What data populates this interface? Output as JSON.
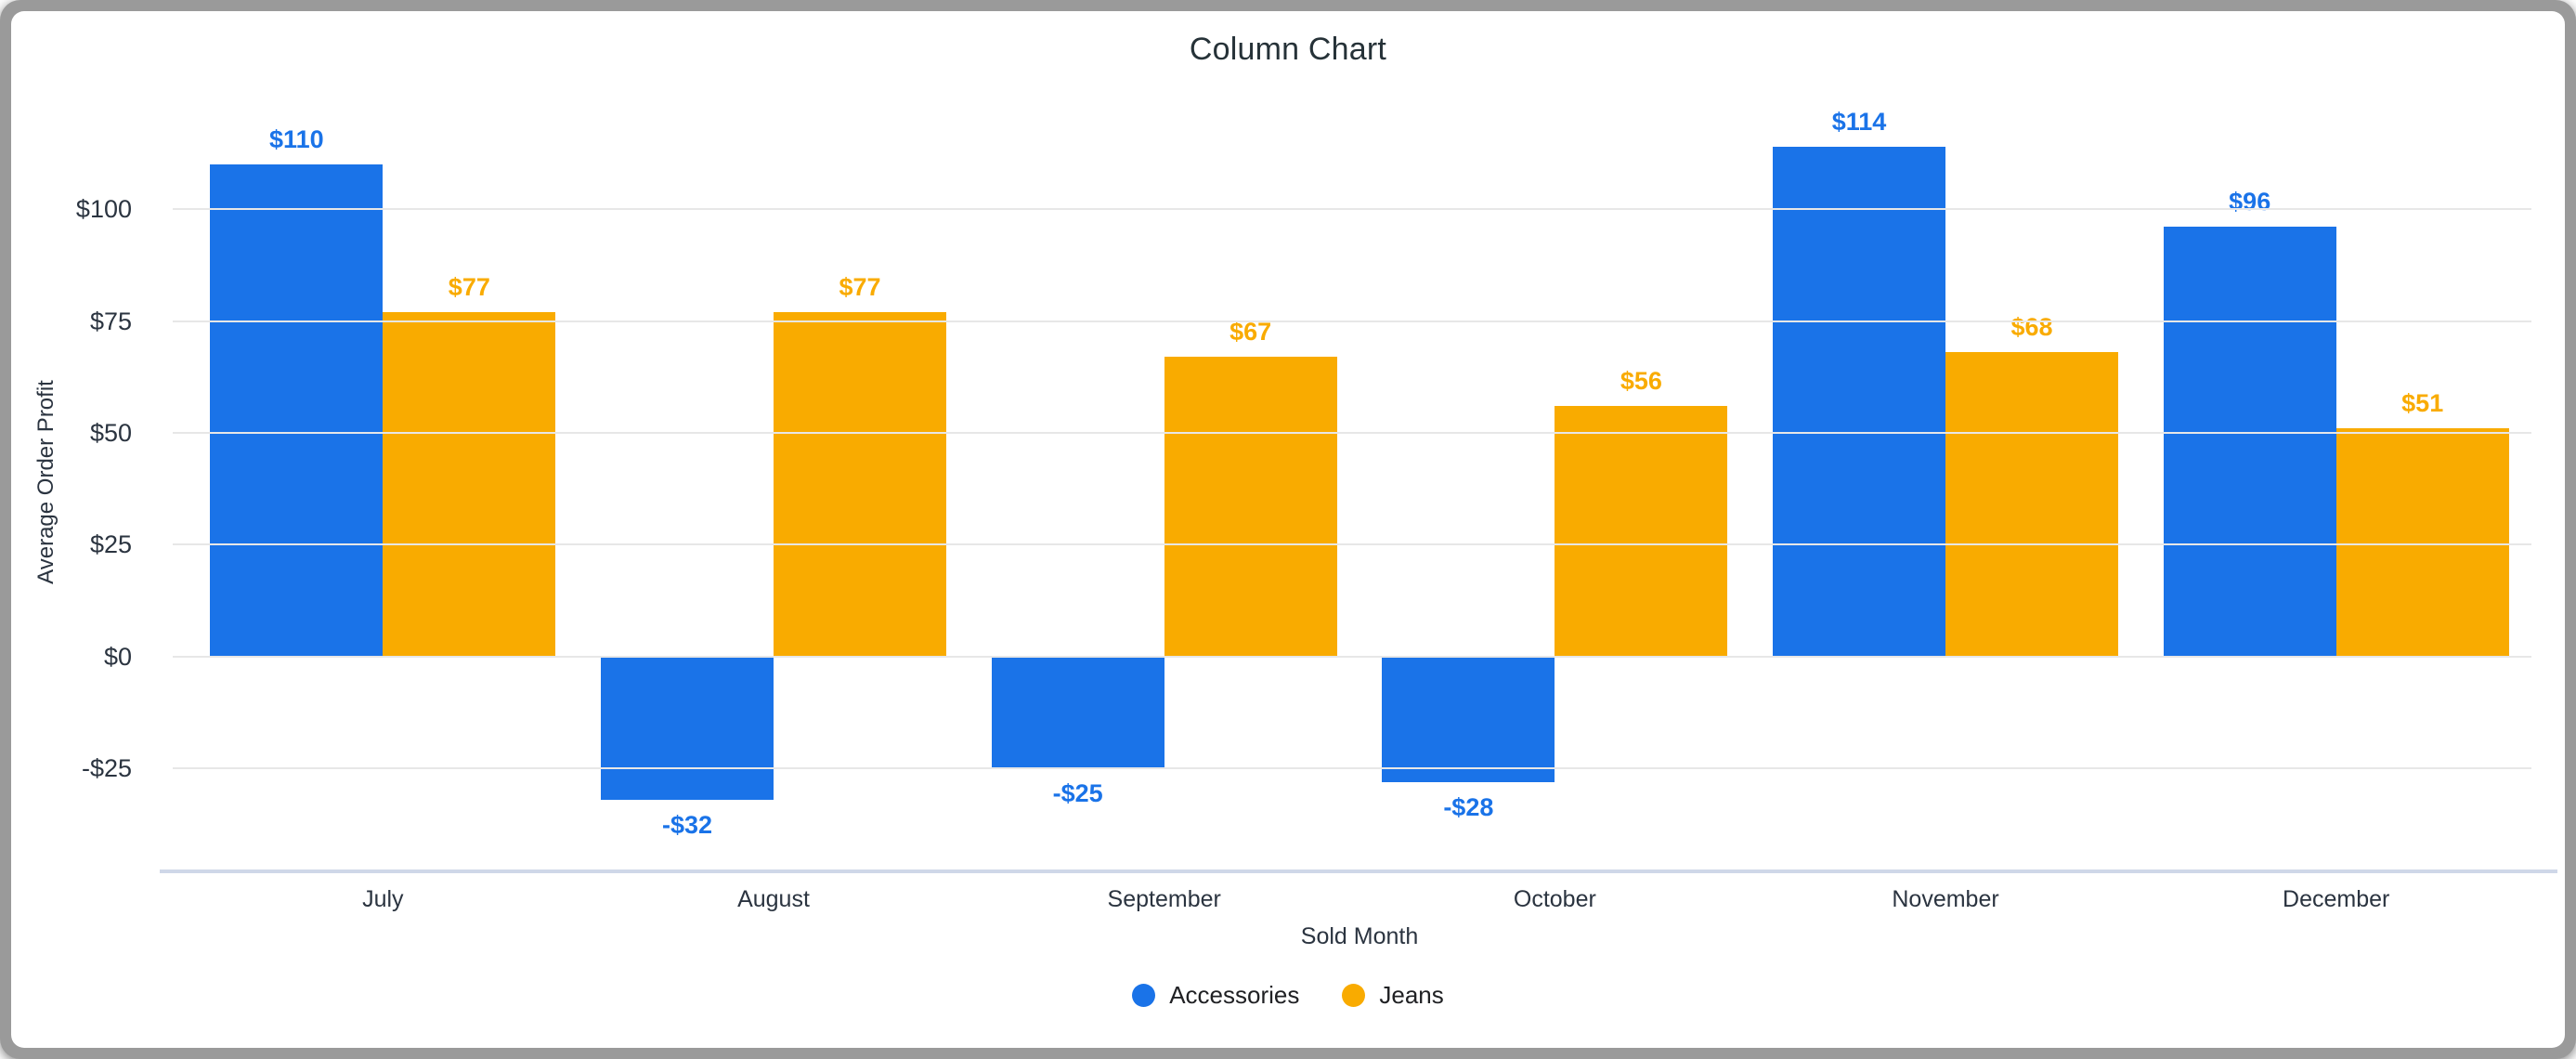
{
  "window": {
    "frame_color": "#9a9a9a",
    "card_color": "#ffffff"
  },
  "chart_data": {
    "type": "bar",
    "title": "Column Chart",
    "xlabel": "Sold Month",
    "ylabel": "Average Order Profit",
    "categories": [
      "July",
      "August",
      "September",
      "October",
      "November",
      "December"
    ],
    "series": [
      {
        "name": "Accessories",
        "color": "#1a73e8",
        "values": [
          110,
          -32,
          -25,
          -28,
          114,
          96
        ],
        "labels": [
          "$110",
          "-$32",
          "-$25",
          "-$28",
          "$114",
          "$96"
        ]
      },
      {
        "name": "Jeans",
        "color": "#f9ab00",
        "values": [
          77,
          77,
          67,
          56,
          68,
          51
        ],
        "labels": [
          "$77",
          "$77",
          "$67",
          "$56",
          "$68",
          "$51"
        ]
      }
    ],
    "y_ticks": [
      {
        "value": 100,
        "label": "$100"
      },
      {
        "value": 75,
        "label": "$75"
      },
      {
        "value": 50,
        "label": "$50"
      },
      {
        "value": 25,
        "label": "$25"
      },
      {
        "value": 0,
        "label": "$0"
      },
      {
        "value": -25,
        "label": "-$25"
      }
    ],
    "ylim": [
      -48,
      126
    ],
    "grid": true,
    "gridline_color": "#e7e7e7",
    "axis_line_color": "#cfd7e8",
    "text_color": "#2b3440",
    "title_color": "#263238",
    "legend_position": "bottom-center"
  }
}
